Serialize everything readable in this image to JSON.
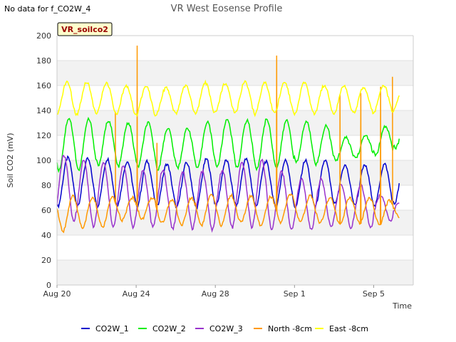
{
  "chart_data": {
    "type": "line",
    "title": "VR West Eosense Profile",
    "no_data_note": "No data for f_CO2W_4",
    "site_label": "VR_soilco2",
    "xlabel": "Time",
    "ylabel": "Soil CO2 (mV)",
    "ylim": [
      0,
      200
    ],
    "yticks": [
      0,
      20,
      40,
      60,
      80,
      100,
      120,
      140,
      160,
      180,
      200
    ],
    "xlim": [
      0,
      18
    ],
    "xticks": [
      {
        "label": "Aug 20",
        "day": 0
      },
      {
        "label": "Aug 24",
        "day": 4
      },
      {
        "label": "Aug 28",
        "day": 8
      },
      {
        "label": "Sep 1",
        "day": 12
      },
      {
        "label": "Sep 5",
        "day": 16
      }
    ],
    "x_start": "Aug 20",
    "x_end_day": 17.3,
    "legend_position": "bottom",
    "grid": true,
    "band_color": "#f2f2f2",
    "series": [
      {
        "name": "CO2W_1",
        "color": "#0000cc",
        "daily_min": [
          63,
          64,
          63,
          64,
          63,
          63,
          62,
          62,
          64,
          63,
          63,
          62,
          62,
          63,
          65,
          64,
          63,
          65
        ],
        "daily_max": [
          102,
          101,
          101,
          99,
          99,
          97,
          98,
          101,
          100,
          101,
          99,
          100,
          100,
          100,
          96,
          96,
          97,
          97
        ],
        "phase": 0.55
      },
      {
        "name": "CO2W_2",
        "color": "#00ee00",
        "daily_min": [
          92,
          92,
          96,
          95,
          95,
          93,
          94,
          93,
          95,
          94,
          93,
          94,
          98,
          97,
          100,
          102,
          104,
          110
        ],
        "daily_max": [
          134,
          133,
          132,
          130,
          130,
          126,
          126,
          131,
          133,
          132,
          133,
          132,
          131,
          128,
          118,
          120,
          127,
          127
        ],
        "phase": 0.6
      },
      {
        "name": "CO2W_3",
        "color": "#9933cc",
        "daily_min": [
          50,
          46,
          46,
          46,
          46,
          45,
          45,
          44,
          46,
          46,
          44,
          44,
          44,
          46,
          46,
          46,
          52,
          58
        ],
        "daily_max": [
          104,
          100,
          98,
          96,
          92,
          92,
          91,
          91,
          92,
          98,
          100,
          91,
          85,
          85,
          80,
          80,
          72,
          66
        ],
        "phase": 0.35
      },
      {
        "name": "North -8cm",
        "color": "#ff9900",
        "daily_min": [
          43,
          46,
          46,
          52,
          53,
          50,
          48,
          48,
          48,
          50,
          48,
          50,
          50,
          50,
          48,
          50,
          48,
          55
        ],
        "daily_max": [
          71,
          70,
          70,
          70,
          70,
          68,
          70,
          72,
          72,
          71,
          71,
          73,
          72,
          70,
          70,
          70,
          68,
          66
        ],
        "phase": 0.8,
        "spikes": [
          {
            "day": 2.95,
            "value": 139
          },
          {
            "day": 4.05,
            "value": 192
          },
          {
            "day": 5.05,
            "value": 114
          },
          {
            "day": 11.1,
            "value": 184
          },
          {
            "day": 14.3,
            "value": 153
          },
          {
            "day": 15.35,
            "value": 154
          },
          {
            "day": 16.35,
            "value": 159
          },
          {
            "day": 16.95,
            "value": 167
          }
        ]
      },
      {
        "name": "East -8cm",
        "color": "#ffff00",
        "daily_min": [
          136,
          137,
          137,
          136,
          136,
          137,
          137,
          137,
          138,
          138,
          137,
          138,
          137,
          137,
          137,
          138,
          138,
          140
        ],
        "daily_max": [
          163,
          163,
          162,
          160,
          160,
          158,
          160,
          162,
          162,
          163,
          162,
          163,
          162,
          160,
          160,
          159,
          160,
          159
        ],
        "phase": 0.5
      }
    ]
  }
}
